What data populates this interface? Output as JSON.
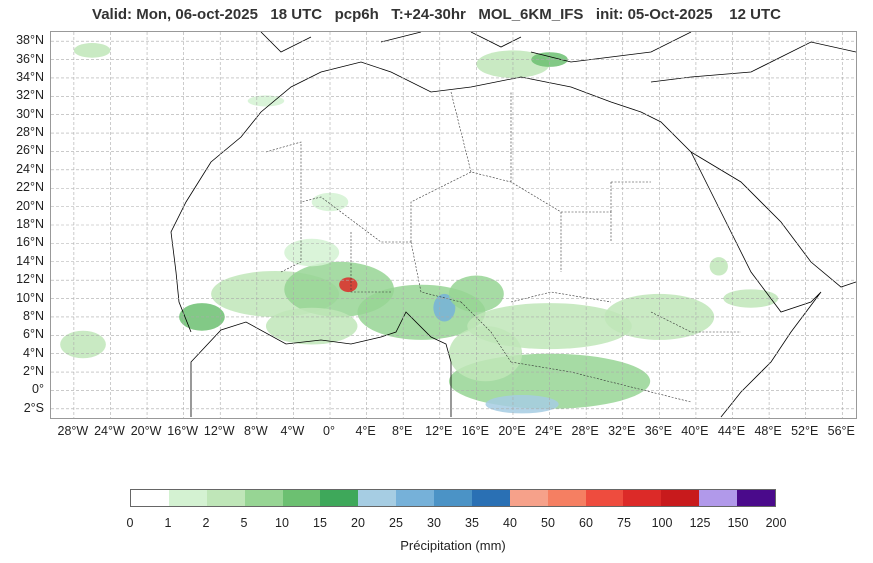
{
  "title": "Valid: Mon, 06-oct-2025   18 UTC   pcp6h   T:+24-30hr   MOL_6KM_IFS   init: 05-Oct-2025    12 UTC",
  "map": {
    "lat_labels": [
      "38°N",
      "36°N",
      "34°N",
      "32°N",
      "30°N",
      "28°N",
      "26°N",
      "24°N",
      "22°N",
      "20°N",
      "18°N",
      "16°N",
      "14°N",
      "12°N",
      "10°N",
      "8°N",
      "6°N",
      "4°N",
      "2°N",
      "0°",
      "2°S"
    ],
    "lat_values": [
      38,
      36,
      34,
      32,
      30,
      28,
      26,
      24,
      22,
      20,
      18,
      16,
      14,
      12,
      10,
      8,
      6,
      4,
      2,
      0,
      -2
    ],
    "lon_labels": [
      "28°W",
      "24°W",
      "20°W",
      "16°W",
      "12°W",
      "8°W",
      "4°W",
      "0°",
      "4°E",
      "8°E",
      "12°E",
      "16°E",
      "20°E",
      "24°E",
      "28°E",
      "32°E",
      "36°E",
      "40°E",
      "44°E",
      "48°E",
      "52°E",
      "56°E"
    ],
    "lon_values": [
      -28,
      -24,
      -20,
      -16,
      -12,
      -8,
      -4,
      0,
      4,
      8,
      12,
      16,
      20,
      24,
      28,
      32,
      36,
      40,
      44,
      48,
      52,
      56
    ],
    "lat_range": [
      -3,
      39
    ],
    "lon_range": [
      -30.5,
      57.5
    ],
    "grid": true,
    "ocean_color": "#ffffff",
    "coastline_color": "#000000",
    "border_color": "#333333"
  },
  "colorbar": {
    "title": "Précipitation (mm)",
    "ticks": [
      "0",
      "1",
      "2",
      "5",
      "10",
      "15",
      "20",
      "25",
      "30",
      "35",
      "40",
      "50",
      "60",
      "75",
      "100",
      "125",
      "150",
      "200"
    ],
    "colors": [
      "#ffffff",
      "#d4f2d2",
      "#bfe6b8",
      "#97d594",
      "#6cc071",
      "#3ea85a",
      "#a6cde3",
      "#76b1d9",
      "#4b93c6",
      "#2a70b4",
      "#f6a18a",
      "#f57f62",
      "#ee4c3e",
      "#dc2a28",
      "#c81a1c",
      "#b199ea",
      "#4a0a8b"
    ]
  },
  "precip_regions": [
    {
      "lat": 10.5,
      "lon": -6,
      "rx": 7,
      "ry": 2.5,
      "level": 2
    },
    {
      "lat": 11,
      "lon": 1,
      "rx": 6,
      "ry": 3,
      "level": 3
    },
    {
      "lat": 11.5,
      "lon": 2,
      "rx": 1,
      "ry": 0.8,
      "level": 13
    },
    {
      "lat": 8.5,
      "lon": 10,
      "rx": 7,
      "ry": 3,
      "level": 3
    },
    {
      "lat": 9,
      "lon": 12.5,
      "rx": 1.2,
      "ry": 1.5,
      "level": 7
    },
    {
      "lat": 10.5,
      "lon": 16,
      "rx": 3,
      "ry": 2,
      "level": 3
    },
    {
      "lat": 8,
      "lon": -14,
      "rx": 2.5,
      "ry": 1.5,
      "level": 4
    },
    {
      "lat": 7,
      "lon": -2,
      "rx": 5,
      "ry": 2,
      "level": 2
    },
    {
      "lat": 7,
      "lon": 24,
      "rx": 9,
      "ry": 2.5,
      "level": 2
    },
    {
      "lat": 8,
      "lon": 36,
      "rx": 6,
      "ry": 2.5,
      "level": 2
    },
    {
      "lat": 10,
      "lon": 46,
      "rx": 3,
      "ry": 1,
      "level": 2
    },
    {
      "lat": 1,
      "lon": 24,
      "rx": 11,
      "ry": 3,
      "level": 3
    },
    {
      "lat": -1.5,
      "lon": 21,
      "rx": 4,
      "ry": 1,
      "level": 6
    },
    {
      "lat": 4,
      "lon": 17,
      "rx": 4,
      "ry": 3,
      "level": 2
    },
    {
      "lat": 5,
      "lon": -27,
      "rx": 2.5,
      "ry": 1.5,
      "level": 2
    },
    {
      "lat": 37,
      "lon": -26,
      "rx": 2,
      "ry": 0.8,
      "level": 2
    },
    {
      "lat": 35.5,
      "lon": 20,
      "rx": 4,
      "ry": 1.5,
      "level": 2
    },
    {
      "lat": 36,
      "lon": 24,
      "rx": 2,
      "ry": 0.8,
      "level": 4
    },
    {
      "lat": 31.5,
      "lon": -7,
      "rx": 2,
      "ry": 0.6,
      "level": 1
    },
    {
      "lat": 20.5,
      "lon": 0,
      "rx": 2,
      "ry": 1,
      "level": 1
    },
    {
      "lat": 15,
      "lon": -2,
      "rx": 3,
      "ry": 1.5,
      "level": 1
    },
    {
      "lat": 13.5,
      "lon": 42.5,
      "rx": 1,
      "ry": 1,
      "level": 2
    }
  ]
}
